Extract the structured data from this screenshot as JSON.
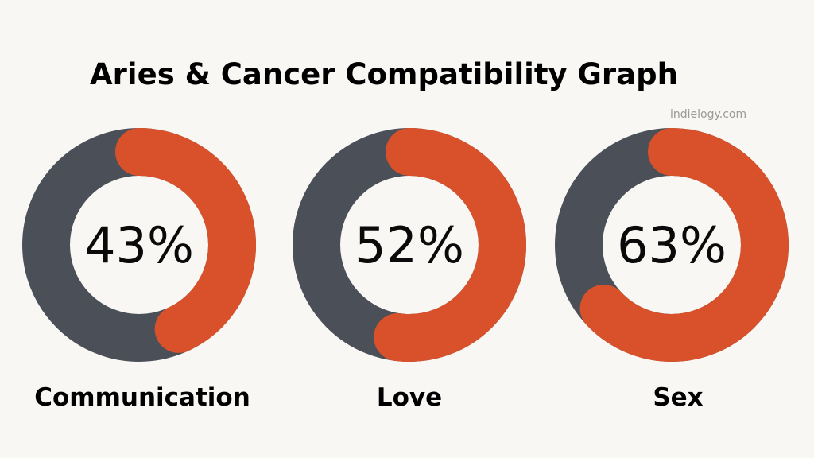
{
  "title": "Aries & Cancer Compatibility Graph",
  "watermark": "indielogy.com",
  "colors": {
    "background": "#f8f7f3",
    "track": "#4a4f58",
    "accent": "#d9512a",
    "text": "#000000",
    "watermark": "#9a9a9a"
  },
  "chart_data": {
    "type": "donut",
    "title": "Aries & Cancer Compatibility Graph",
    "unit": "%",
    "items": [
      {
        "label": "Communication",
        "value": 43,
        "display": "43%"
      },
      {
        "label": "Love",
        "value": 52,
        "display": "52%"
      },
      {
        "label": "Sex",
        "value": 63,
        "display": "63%"
      }
    ]
  }
}
